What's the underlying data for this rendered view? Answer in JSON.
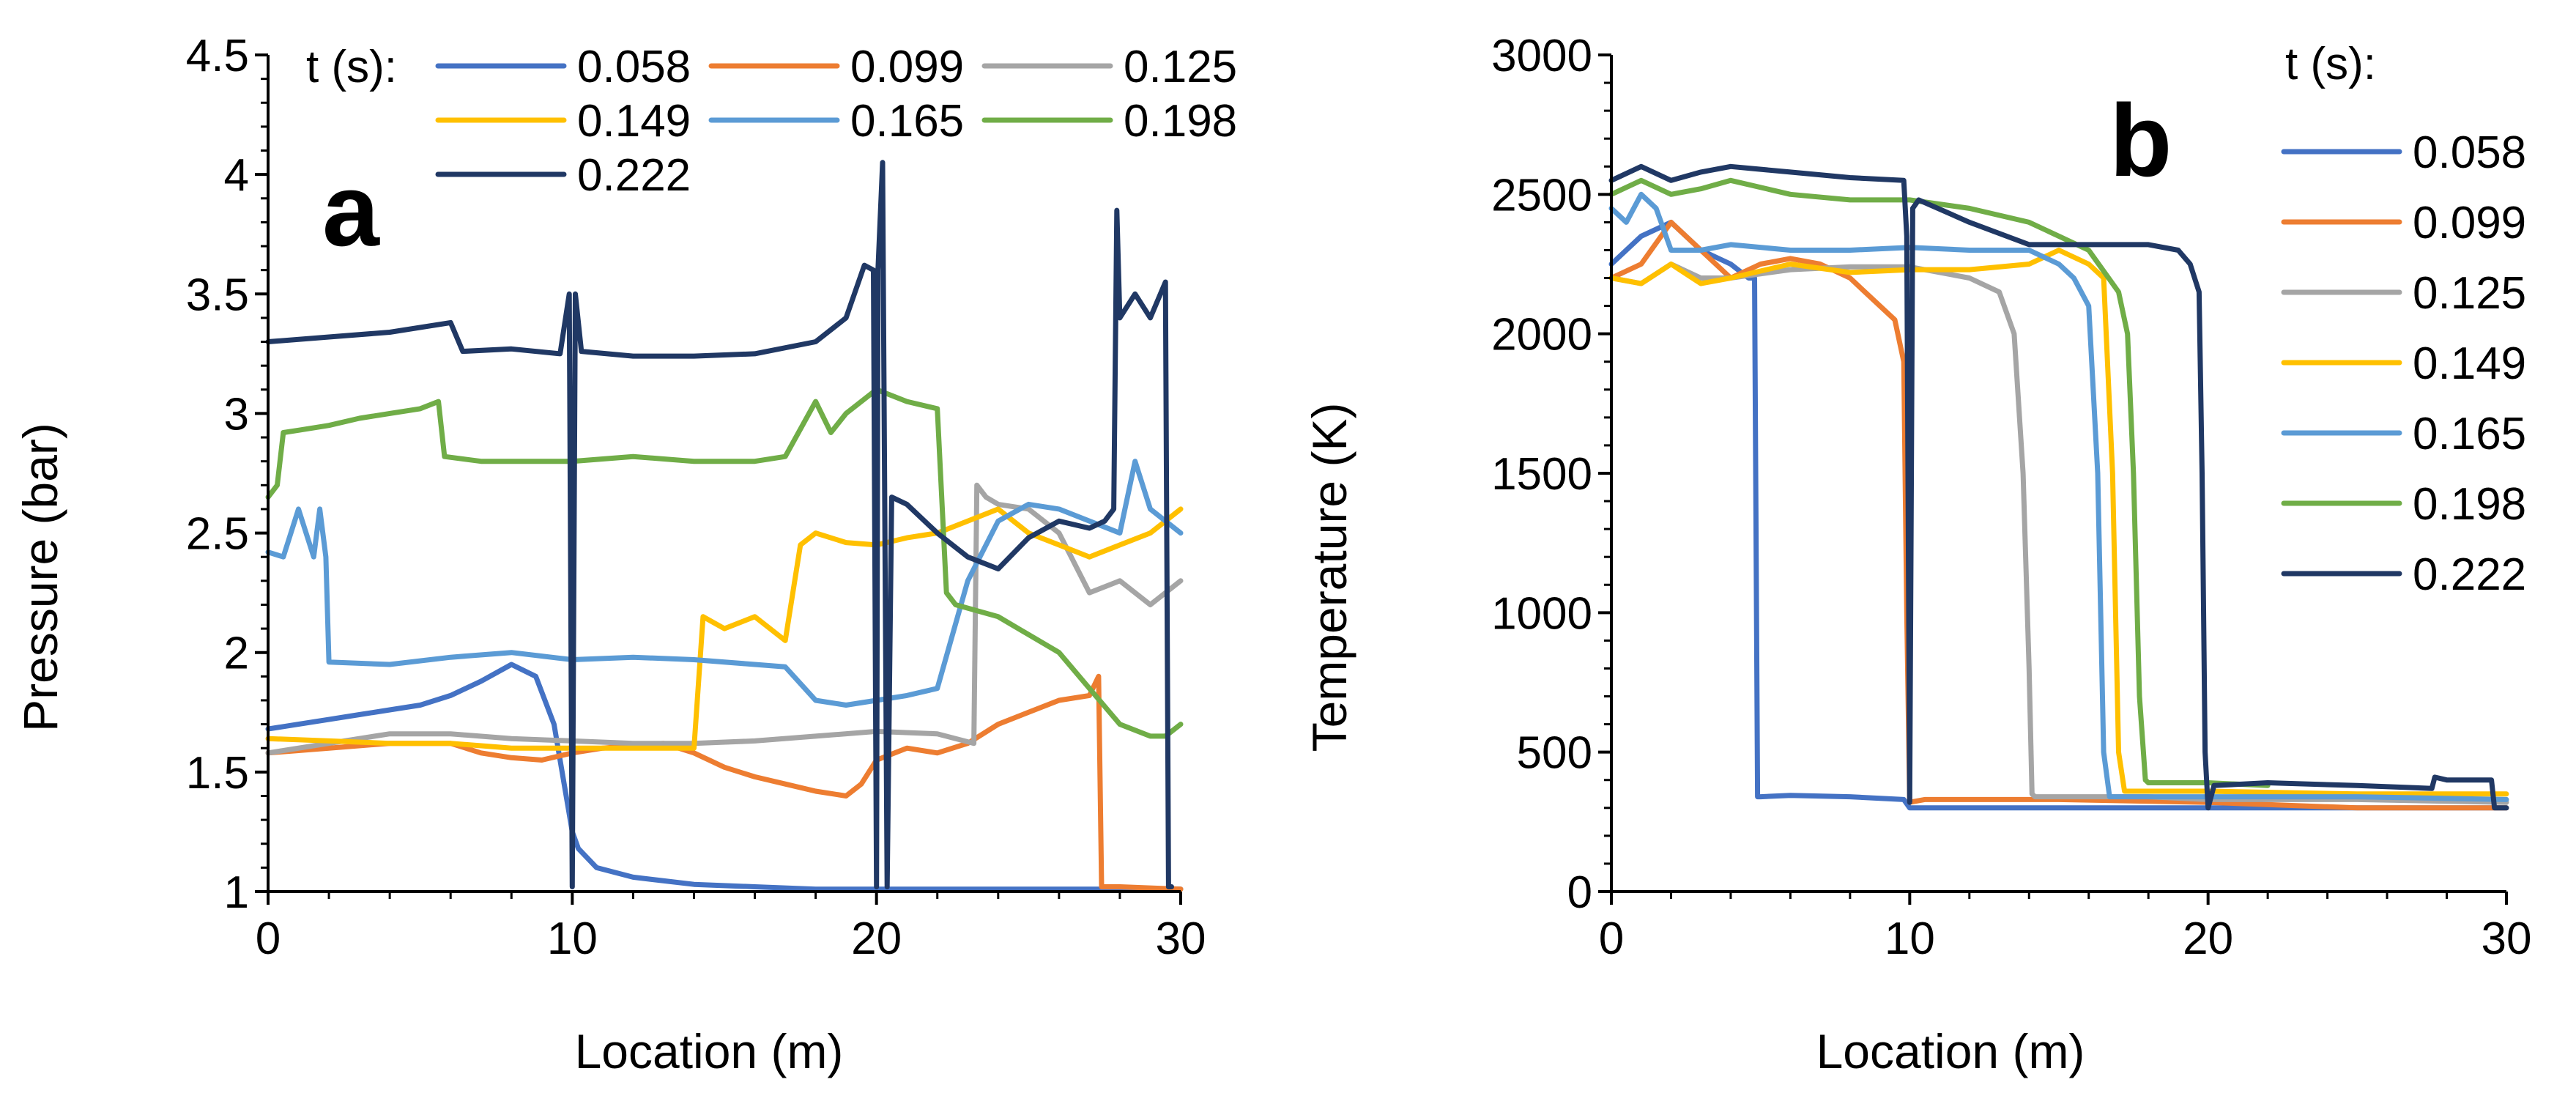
{
  "chart_data": [
    {
      "type": "line",
      "panel_label": "a",
      "xlabel": "Location (m)",
      "ylabel": "Pressure (bar)",
      "xlim": [
        0,
        30
      ],
      "ylim": [
        1,
        4.5
      ],
      "xticks": [
        0,
        10,
        20,
        30
      ],
      "xtick_labels": [
        "0",
        "10",
        "20",
        "30"
      ],
      "yticks": [
        1,
        1.5,
        2,
        2.5,
        3,
        3.5,
        4,
        4.5
      ],
      "ytick_labels": [
        "1",
        "1.5",
        "2",
        "2.5",
        "3",
        "3.5",
        "4",
        "4.5"
      ],
      "legend_title": "t (s):",
      "legend_placement": "top",
      "series": [
        {
          "name": "0.058",
          "color": "#4472C4",
          "x": [
            0,
            1,
            2,
            3,
            4,
            5,
            6,
            7,
            8,
            8.8,
            9.4,
            9.8,
            10,
            10.2,
            10.8,
            12,
            14,
            16,
            18,
            20,
            22,
            25,
            28,
            30
          ],
          "y": [
            1.68,
            1.7,
            1.72,
            1.74,
            1.76,
            1.78,
            1.82,
            1.88,
            1.95,
            1.9,
            1.7,
            1.4,
            1.25,
            1.18,
            1.1,
            1.06,
            1.03,
            1.02,
            1.01,
            1.01,
            1.01,
            1.01,
            1.01,
            1.01
          ]
        },
        {
          "name": "0.099",
          "color": "#ED7D31",
          "x": [
            0,
            2,
            4,
            6,
            7,
            8,
            9,
            10,
            11,
            13,
            14,
            15,
            16,
            17,
            18,
            19,
            19.5,
            20,
            21,
            22,
            23,
            24,
            25,
            26,
            27,
            27.3,
            27.4,
            28,
            30
          ],
          "y": [
            1.58,
            1.6,
            1.62,
            1.62,
            1.58,
            1.56,
            1.55,
            1.58,
            1.6,
            1.62,
            1.58,
            1.52,
            1.48,
            1.45,
            1.42,
            1.4,
            1.45,
            1.55,
            1.6,
            1.58,
            1.62,
            1.7,
            1.75,
            1.8,
            1.82,
            1.9,
            1.02,
            1.02,
            1.01
          ]
        },
        {
          "name": "0.125",
          "color": "#A5A5A5",
          "x": [
            0,
            2,
            4,
            6,
            8,
            10,
            12,
            14,
            16,
            18,
            20,
            22,
            23.2,
            23.3,
            23.6,
            24,
            25,
            26,
            27,
            28,
            29,
            30
          ],
          "y": [
            1.58,
            1.62,
            1.66,
            1.66,
            1.64,
            1.63,
            1.62,
            1.62,
            1.63,
            1.65,
            1.67,
            1.66,
            1.62,
            2.7,
            2.65,
            2.62,
            2.6,
            2.5,
            2.25,
            2.3,
            2.2,
            2.3
          ]
        },
        {
          "name": "0.149",
          "color": "#FFC000",
          "x": [
            0,
            2,
            4,
            6,
            8,
            10,
            12,
            14,
            14.3,
            15,
            16,
            17,
            17.5,
            18,
            19,
            20,
            21,
            22,
            23,
            24,
            25,
            26,
            27,
            28,
            29,
            30
          ],
          "y": [
            1.64,
            1.63,
            1.62,
            1.62,
            1.6,
            1.6,
            1.6,
            1.6,
            2.15,
            2.1,
            2.15,
            2.05,
            2.45,
            2.5,
            2.46,
            2.45,
            2.48,
            2.5,
            2.55,
            2.6,
            2.5,
            2.45,
            2.4,
            2.45,
            2.5,
            2.6
          ]
        },
        {
          "name": "0.165",
          "color": "#5B9BD5",
          "x": [
            0,
            0.5,
            1,
            1.5,
            1.7,
            1.9,
            2,
            4,
            6,
            8,
            10,
            12,
            14,
            16,
            17,
            18,
            19,
            20,
            21,
            22,
            23,
            24,
            25,
            26,
            27,
            28,
            28.5,
            29,
            30
          ],
          "y": [
            2.42,
            2.4,
            2.6,
            2.4,
            2.6,
            2.4,
            1.96,
            1.95,
            1.98,
            2.0,
            1.97,
            1.98,
            1.97,
            1.95,
            1.94,
            1.8,
            1.78,
            1.8,
            1.82,
            1.85,
            2.3,
            2.55,
            2.62,
            2.6,
            2.55,
            2.5,
            2.8,
            2.6,
            2.5
          ]
        },
        {
          "name": "0.198",
          "color": "#70AD47",
          "x": [
            0,
            0.3,
            0.5,
            1,
            2,
            3,
            4,
            5,
            5.6,
            5.8,
            7,
            8,
            10,
            12,
            14,
            16,
            17,
            18,
            18.5,
            19,
            20,
            21,
            22,
            22.3,
            22.6,
            24,
            26,
            27,
            28,
            29,
            29.5,
            30
          ],
          "y": [
            2.65,
            2.7,
            2.92,
            2.93,
            2.95,
            2.98,
            3.0,
            3.02,
            3.05,
            2.82,
            2.8,
            2.8,
            2.8,
            2.82,
            2.8,
            2.8,
            2.82,
            3.05,
            2.92,
            3.0,
            3.1,
            3.05,
            3.02,
            2.25,
            2.2,
            2.15,
            2.0,
            1.85,
            1.7,
            1.65,
            1.65,
            1.7
          ]
        },
        {
          "name": "0.222",
          "color": "#203864",
          "x": [
            0,
            2,
            4,
            6,
            6.4,
            8,
            9.6,
            9.9,
            10,
            10.1,
            10.3,
            12,
            14,
            16,
            18,
            19,
            19.6,
            19.9,
            20,
            20.05,
            20.2,
            20.35,
            20.5,
            21,
            22,
            23,
            24,
            25,
            26,
            27,
            27.5,
            27.8,
            27.9,
            28,
            28.5,
            29,
            29.5,
            29.6,
            29.7
          ],
          "y": [
            3.3,
            3.32,
            3.34,
            3.38,
            3.26,
            3.27,
            3.25,
            3.5,
            1.02,
            3.5,
            3.26,
            3.24,
            3.24,
            3.25,
            3.3,
            3.4,
            3.62,
            3.6,
            1.02,
            3.6,
            4.05,
            1.02,
            2.65,
            2.62,
            2.5,
            2.4,
            2.35,
            2.48,
            2.55,
            2.52,
            2.55,
            2.6,
            3.85,
            3.4,
            3.5,
            3.4,
            3.55,
            1.02,
            1.02
          ]
        }
      ]
    },
    {
      "type": "line",
      "panel_label": "b",
      "xlabel": "Location (m)",
      "ylabel": "Temperature (K)",
      "xlim": [
        0,
        30
      ],
      "ylim": [
        0,
        3000
      ],
      "xticks": [
        0,
        10,
        20,
        30
      ],
      "xtick_labels": [
        "0",
        "10",
        "20",
        "30"
      ],
      "yticks": [
        0,
        500,
        1000,
        1500,
        2000,
        2500,
        3000
      ],
      "ytick_labels": [
        "0",
        "500",
        "1000",
        "1500",
        "2000",
        "2500",
        "3000"
      ],
      "legend_title": "t (s):",
      "legend_placement": "right",
      "series": [
        {
          "name": "0.058",
          "color": "#4472C4",
          "x": [
            0,
            1,
            2,
            3,
            4,
            4.6,
            4.8,
            4.9,
            5,
            6,
            8,
            9.8,
            10,
            10.2,
            12,
            15,
            20,
            25,
            30
          ],
          "y": [
            2250,
            2350,
            2400,
            2300,
            2250,
            2200,
            2200,
            340,
            340,
            345,
            340,
            330,
            300,
            300,
            300,
            300,
            300,
            300,
            300
          ]
        },
        {
          "name": "0.099",
          "color": "#ED7D31",
          "x": [
            0,
            1,
            2,
            3,
            4,
            5,
            6,
            7,
            8,
            8.5,
            9,
            9.5,
            9.8,
            9.9,
            10,
            10.5,
            12,
            15,
            20,
            25,
            30
          ],
          "y": [
            2200,
            2250,
            2400,
            2300,
            2200,
            2250,
            2270,
            2250,
            2200,
            2150,
            2100,
            2050,
            1900,
            1000,
            320,
            330,
            330,
            330,
            320,
            300,
            300
          ]
        },
        {
          "name": "0.125",
          "color": "#A5A5A5",
          "x": [
            0,
            1,
            2,
            3,
            4,
            6,
            8,
            10,
            12,
            13,
            13.5,
            13.8,
            14,
            14.1,
            14.2,
            16,
            18,
            20,
            25,
            30
          ],
          "y": [
            2200,
            2180,
            2250,
            2200,
            2200,
            2230,
            2240,
            2240,
            2200,
            2150,
            2000,
            1500,
            800,
            350,
            340,
            340,
            340,
            330,
            330,
            320
          ]
        },
        {
          "name": "0.149",
          "color": "#FFC000",
          "x": [
            0,
            1,
            2,
            3,
            4,
            6,
            8,
            10,
            12,
            14,
            15,
            16,
            16.5,
            16.8,
            17,
            17.2,
            18,
            20,
            25,
            30
          ],
          "y": [
            2200,
            2180,
            2250,
            2180,
            2200,
            2250,
            2220,
            2230,
            2230,
            2250,
            2300,
            2250,
            2200,
            1500,
            500,
            360,
            360,
            360,
            350,
            350
          ]
        },
        {
          "name": "0.165",
          "color": "#5B9BD5",
          "x": [
            0,
            0.5,
            1,
            1.5,
            2,
            3,
            4,
            6,
            8,
            10,
            12,
            14,
            15,
            15.5,
            16,
            16.3,
            16.5,
            16.7,
            18,
            20,
            25,
            30
          ],
          "y": [
            2450,
            2400,
            2500,
            2450,
            2300,
            2300,
            2320,
            2300,
            2300,
            2310,
            2300,
            2300,
            2250,
            2200,
            2100,
            1500,
            500,
            340,
            340,
            340,
            340,
            330
          ]
        },
        {
          "name": "0.198",
          "color": "#70AD47",
          "x": [
            0,
            1,
            2,
            3,
            4,
            6,
            8,
            10,
            12,
            14,
            15,
            16,
            17,
            17.3,
            17.5,
            17.7,
            17.9,
            18,
            19,
            20,
            22
          ],
          "y": [
            2500,
            2550,
            2500,
            2520,
            2550,
            2500,
            2480,
            2480,
            2450,
            2400,
            2350,
            2300,
            2150,
            2000,
            1500,
            700,
            400,
            390,
            390,
            390,
            380
          ]
        },
        {
          "name": "0.222",
          "color": "#203864",
          "x": [
            0,
            1,
            2,
            3,
            4,
            6,
            8,
            9.8,
            9.9,
            10,
            10.1,
            10.3,
            12,
            14,
            16,
            18,
            19,
            19.4,
            19.7,
            19.8,
            19.9,
            20,
            20.2,
            22,
            25,
            27.5,
            27.6,
            28,
            29,
            29.5,
            29.6,
            29.7,
            30
          ],
          "y": [
            2550,
            2600,
            2550,
            2580,
            2600,
            2580,
            2560,
            2550,
            2350,
            320,
            2450,
            2480,
            2400,
            2320,
            2320,
            2320,
            2300,
            2250,
            2150,
            1500,
            500,
            300,
            380,
            390,
            380,
            370,
            410,
            400,
            400,
            400,
            300,
            300,
            300
          ]
        }
      ]
    }
  ]
}
